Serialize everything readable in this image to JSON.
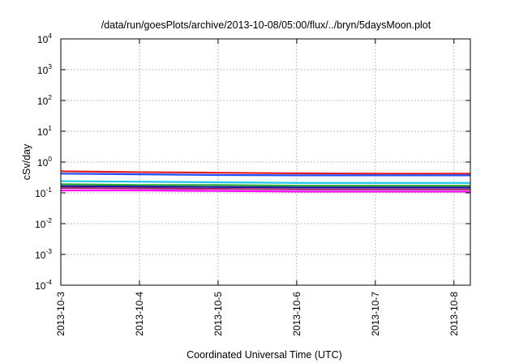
{
  "chart_data": {
    "type": "line",
    "title": "/data/run/goesPlots/archive/2013-10-08/05:00/flux/../bryn/5daysMoon.plot",
    "xlabel": "Coordinated Universal Time (UTC)",
    "ylabel": "cSv/day",
    "x_range": [
      "2013-10-03",
      "2013-10-08 05:00"
    ],
    "x_ticks": [
      "2013-10-3",
      "2013-10-4",
      "2013-10-5",
      "2013-10-6",
      "2013-10-7",
      "2013-10-8"
    ],
    "ylim": [
      0.0001,
      10000
    ],
    "yscale": "log",
    "y_ticks": [
      {
        "base": "10",
        "exp": "-4"
      },
      {
        "base": "10",
        "exp": "-3"
      },
      {
        "base": "10",
        "exp": "-2"
      },
      {
        "base": "10",
        "exp": "-1"
      },
      {
        "base": "10",
        "exp": "0"
      },
      {
        "base": "10",
        "exp": "1"
      },
      {
        "base": "10",
        "exp": "2"
      },
      {
        "base": "10",
        "exp": "3"
      },
      {
        "base": "10",
        "exp": "4"
      }
    ],
    "grid": true,
    "legend": "none",
    "x": [
      "2013-10-03",
      "2013-10-04",
      "2013-10-05",
      "2013-10-06",
      "2013-10-07",
      "2013-10-08",
      "2013-10-08 05:00"
    ],
    "series": [
      {
        "color": "#e41a1c",
        "values": [
          0.5,
          0.47,
          0.45,
          0.43,
          0.42,
          0.42,
          0.42
        ]
      },
      {
        "color": "#1f4fff",
        "values": [
          0.42,
          0.4,
          0.38,
          0.37,
          0.37,
          0.37,
          0.37
        ]
      },
      {
        "color": "#1ec8e8",
        "values": [
          0.24,
          0.23,
          0.22,
          0.21,
          0.21,
          0.21,
          0.21
        ]
      },
      {
        "color": "#2eaa2e",
        "values": [
          0.19,
          0.18,
          0.18,
          0.17,
          0.17,
          0.17,
          0.17
        ]
      },
      {
        "color": "#1a1aa0",
        "values": [
          0.165,
          0.16,
          0.155,
          0.15,
          0.15,
          0.15,
          0.15
        ]
      },
      {
        "color": "#a0206e",
        "values": [
          0.145,
          0.14,
          0.135,
          0.13,
          0.13,
          0.13,
          0.13
        ]
      },
      {
        "color": "#ff00ff",
        "values": [
          0.12,
          0.12,
          0.115,
          0.11,
          0.11,
          0.11,
          0.11
        ]
      }
    ]
  }
}
